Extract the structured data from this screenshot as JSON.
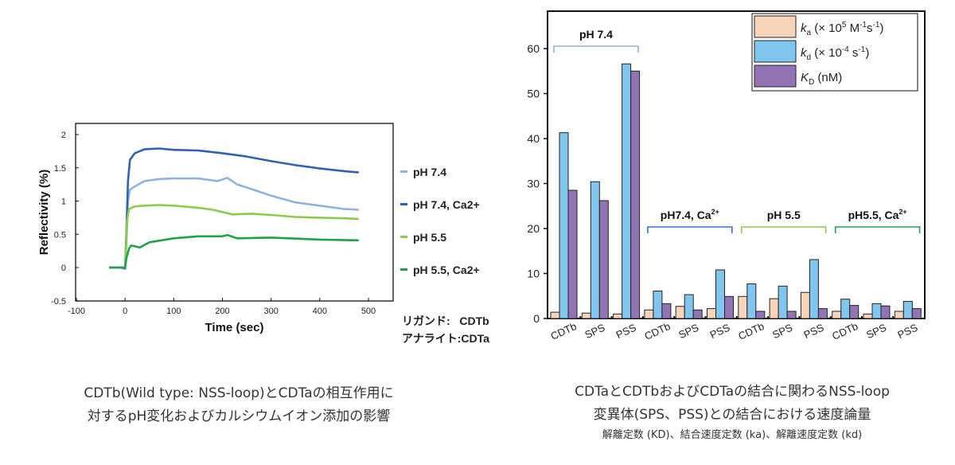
{
  "chart_data": [
    {
      "type": "line",
      "title": "",
      "xlabel": "Time (sec)",
      "ylabel": "Reflectivity (%)",
      "xlim": [
        -100,
        550
      ],
      "ylim": [
        -0.5,
        2.2
      ],
      "xticks": [
        -100,
        0,
        100,
        200,
        300,
        400,
        500
      ],
      "yticks": [
        -0.5,
        0,
        0.5,
        1,
        1.5,
        2
      ],
      "ytick_labels": [
        "-0.5",
        "0",
        "0.5",
        "1",
        "1.5",
        "2"
      ],
      "grid": false,
      "legend_position": "right",
      "series": [
        {
          "name": "pH 7.4",
          "color": "#8fb3e0",
          "x": [
            -33,
            -10,
            0,
            3,
            6,
            10,
            20,
            40,
            70,
            100,
            150,
            190,
            210,
            230,
            260,
            300,
            350,
            400,
            450,
            480
          ],
          "y": [
            0,
            0,
            -0.02,
            0.4,
            1.0,
            1.17,
            1.22,
            1.3,
            1.33,
            1.34,
            1.34,
            1.3,
            1.35,
            1.25,
            1.18,
            1.08,
            0.98,
            0.93,
            0.88,
            0.87
          ]
        },
        {
          "name": "pH 7.4, Ca2+",
          "color": "#2f62b4",
          "x": [
            -33,
            -10,
            0,
            3,
            6,
            10,
            20,
            40,
            70,
            100,
            150,
            200,
            250,
            300,
            350,
            400,
            450,
            480
          ],
          "y": [
            0,
            0,
            -0.01,
            0.6,
            1.3,
            1.62,
            1.72,
            1.78,
            1.79,
            1.77,
            1.76,
            1.72,
            1.67,
            1.6,
            1.54,
            1.49,
            1.45,
            1.43
          ]
        },
        {
          "name": "pH 5.5",
          "color": "#8ccc4a",
          "x": [
            -33,
            -10,
            0,
            2,
            4,
            8,
            20,
            40,
            70,
            100,
            150,
            180,
            220,
            260,
            300,
            350,
            400,
            450,
            480
          ],
          "y": [
            0,
            0,
            0,
            0.3,
            0.7,
            0.88,
            0.92,
            0.93,
            0.94,
            0.93,
            0.9,
            0.87,
            0.8,
            0.81,
            0.79,
            0.76,
            0.75,
            0.74,
            0.73
          ]
        },
        {
          "name": "pH 5.5, Ca2+",
          "color": "#1fa24a",
          "x": [
            -33,
            -10,
            0,
            3,
            8,
            12,
            20,
            30,
            50,
            100,
            150,
            200,
            210,
            230,
            300,
            400,
            480
          ],
          "y": [
            0,
            0,
            0,
            0.15,
            0.28,
            0.33,
            0.32,
            0.3,
            0.38,
            0.44,
            0.47,
            0.47,
            0.49,
            0.44,
            0.45,
            0.42,
            0.41
          ]
        }
      ],
      "legend_entries": [
        "pH 7.4",
        "pH 7.4, Ca2+",
        "pH 5.5",
        "pH 5.5, Ca2+"
      ],
      "annotation": {
        "ligand_label": "リガンド:",
        "ligand_value": "CDTb",
        "analyte_label": "アナライト:",
        "analyte_value": "CDTa"
      }
    },
    {
      "type": "bar",
      "title": "",
      "xlabel": "",
      "ylabel": "",
      "ylim": [
        0,
        67
      ],
      "yticks": [
        0,
        10,
        20,
        30,
        40,
        50,
        60
      ],
      "ytick_labels": [
        "0",
        "10",
        "20",
        "30",
        "40",
        "50",
        "60"
      ],
      "grid": false,
      "legend_position": "top-right",
      "groups": [
        {
          "label": "pH 7.4",
          "label_sup": "",
          "bracket_color": "#8fb0d8"
        },
        {
          "label": "pH7.4, Ca",
          "label_sup": "2+",
          "bracket_color": "#3a6fc4"
        },
        {
          "label": "pH 5.5",
          "label_sup": "",
          "bracket_color": "#8ccc4a"
        },
        {
          "label": "pH5.5, Ca",
          "label_sup": "2+",
          "bracket_color": "#1fa24a"
        }
      ],
      "categories": [
        "CDTb",
        "SPS",
        "PSS",
        "CDTb",
        "SPS",
        "PSS",
        "CDTb",
        "SPS",
        "PSS",
        "CDTb",
        "SPS",
        "PSS"
      ],
      "series": [
        {
          "name": "ka",
          "legend": {
            "sym": "k",
            "sub": "a",
            "text": " (× 10",
            "sup": "5",
            "unit": " M",
            "sup2": "-1",
            "unit2": "s",
            "sup3": "-1",
            "end": ")"
          },
          "color": "#f8d5b8",
          "values": [
            1.4,
            1.2,
            1.0,
            1.9,
            2.7,
            2.2,
            4.9,
            4.4,
            5.8,
            1.6,
            1.0,
            1.6
          ]
        },
        {
          "name": "kd",
          "legend": {
            "sym": "k",
            "sub": "d",
            "text": " (× 10",
            "sup": "-4",
            "unit": " s",
            "sup2": "-1",
            "unit2": "",
            "sup3": "",
            "end": ")"
          },
          "color": "#80c6ee",
          "values": [
            41.3,
            30.4,
            56.6,
            6.1,
            5.3,
            10.8,
            7.7,
            7.2,
            13.1,
            4.3,
            3.3,
            3.8
          ]
        },
        {
          "name": "KD",
          "legend": {
            "sym": "K",
            "sub": "D",
            "text": " (nM)",
            "sup": "",
            "unit": "",
            "sup2": "",
            "unit2": "",
            "sup3": "",
            "end": ""
          },
          "color": "#9273b4",
          "values": [
            28.5,
            26.2,
            55.0,
            3.3,
            1.9,
            4.9,
            1.6,
            1.6,
            2.2,
            2.9,
            2.8,
            2.2
          ]
        }
      ]
    }
  ],
  "captions": {
    "left_line1": "CDTb(Wild type: NSS-loop)とCDTaの相互作用に",
    "left_line2": "対するpH変化およびカルシウムイオン添加の影響",
    "right_line1": "CDTaとCDTbおよびCDTaの結合に関わるNSS-loop",
    "right_line2": "変異体(SPS、PSS)との結合における速度論量",
    "right_line3": "解離定数 (KD)、結合速度定数 (ka)、解離速度定数 (kd)"
  }
}
